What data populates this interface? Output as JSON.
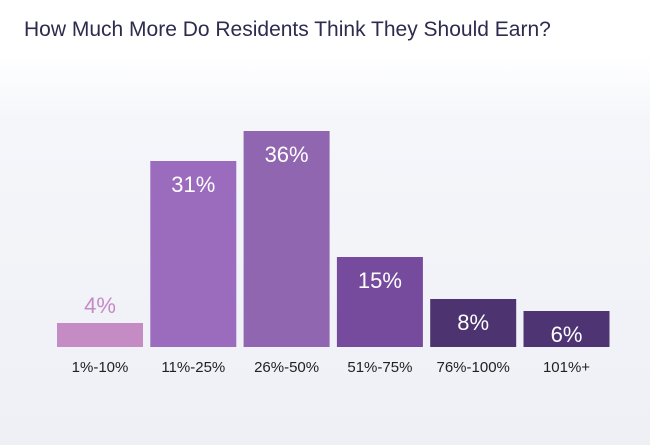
{
  "chart_data": {
    "type": "bar",
    "title": "How Much More Do Residents Think They Should Earn?",
    "xlabel": "",
    "ylabel": "",
    "categories": [
      "1%-10%",
      "11%-25%",
      "26%-50%",
      "51%-75%",
      "76%-100%",
      "101%+"
    ],
    "values": [
      4,
      31,
      36,
      15,
      8,
      6
    ],
    "value_labels": [
      "4%",
      "31%",
      "36%",
      "15%",
      "8%",
      "6%"
    ],
    "ylim": [
      0,
      36
    ],
    "grid": false,
    "legend": "none",
    "colors": [
      "#c48bc4",
      "#9b6bbd",
      "#9066b0",
      "#764a9c",
      "#4d3370",
      "#4f3474"
    ],
    "value_label_colors": [
      "#c48bc4",
      "#ffffff",
      "#ffffff",
      "#ffffff",
      "#ffffff",
      "#ffffff"
    ]
  }
}
